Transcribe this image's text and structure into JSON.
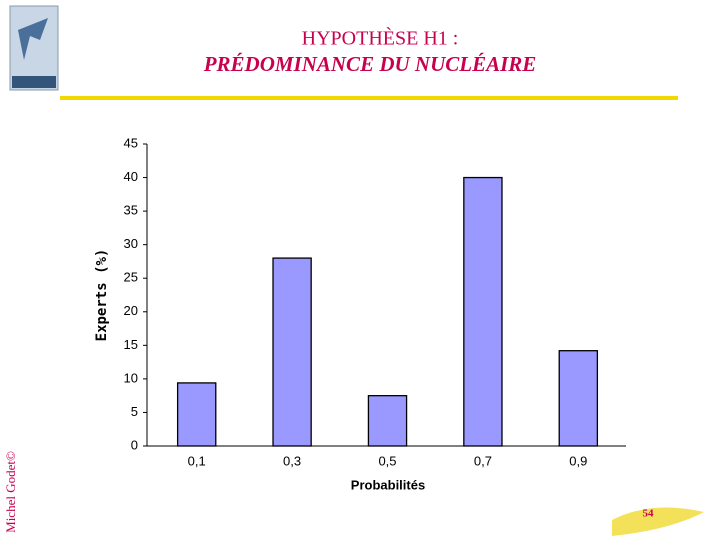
{
  "slide": {
    "title": "HYPOTHÈSE H1 :",
    "subtitle": "PRÉDOMINANCE DU NUCLÉAIRE",
    "author": "Michel Godet©",
    "page_number": "54"
  },
  "chart_data": {
    "type": "bar",
    "categories": [
      "0,1",
      "0,3",
      "0,5",
      "0,7",
      "0,9"
    ],
    "values": [
      9.4,
      28,
      7.5,
      40,
      14.2
    ],
    "color": "#9999ff",
    "x_label": "Probabilités",
    "y_label": "Experts (%)",
    "ylim": [
      0,
      45
    ],
    "yticks": [
      0,
      5,
      10,
      15,
      20,
      25,
      30,
      35,
      40,
      45
    ],
    "grid": false
  }
}
